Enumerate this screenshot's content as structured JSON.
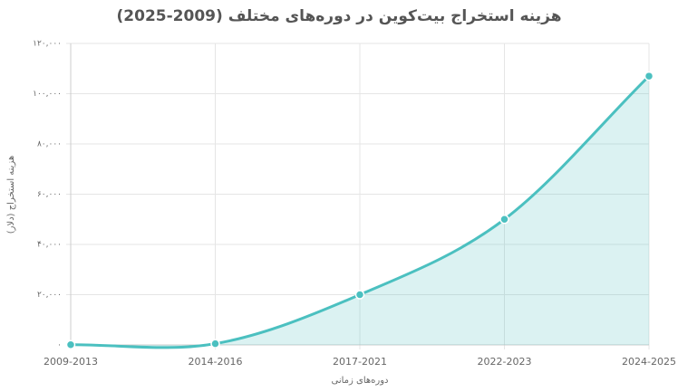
{
  "chart_data": {
    "type": "line",
    "title": "هزینه استخراج بیت‌کوین در دوره‌های مختلف (2009-2025)",
    "x_label": "دوره‌های زمانی",
    "y_label": "هزینه استخراج (دلار)",
    "categories": [
      "2009-2013",
      "2014-2016",
      "2017-2021",
      "2022-2023",
      "2024-2025"
    ],
    "series": [
      {
        "name": "هزینه استخراج (دلار)",
        "color": "#4bc0c0",
        "values": [
          100,
          500,
          20000,
          50000,
          107000
        ]
      }
    ],
    "ylim": [
      0,
      120000
    ],
    "yticks": [
      {
        "value": 0,
        "label": "۰"
      },
      {
        "value": 20000,
        "label": "۲۰,۰۰۰"
      },
      {
        "value": 40000,
        "label": "۴۰,۰۰۰"
      },
      {
        "value": 60000,
        "label": "۶۰,۰۰۰"
      },
      {
        "value": 80000,
        "label": "۸۰,۰۰۰"
      },
      {
        "value": 100000,
        "label": "۱۰۰,۰۰۰"
      },
      {
        "value": 120000,
        "label": "۱۲۰,۰۰۰"
      }
    ],
    "grid": true,
    "fill": true
  }
}
